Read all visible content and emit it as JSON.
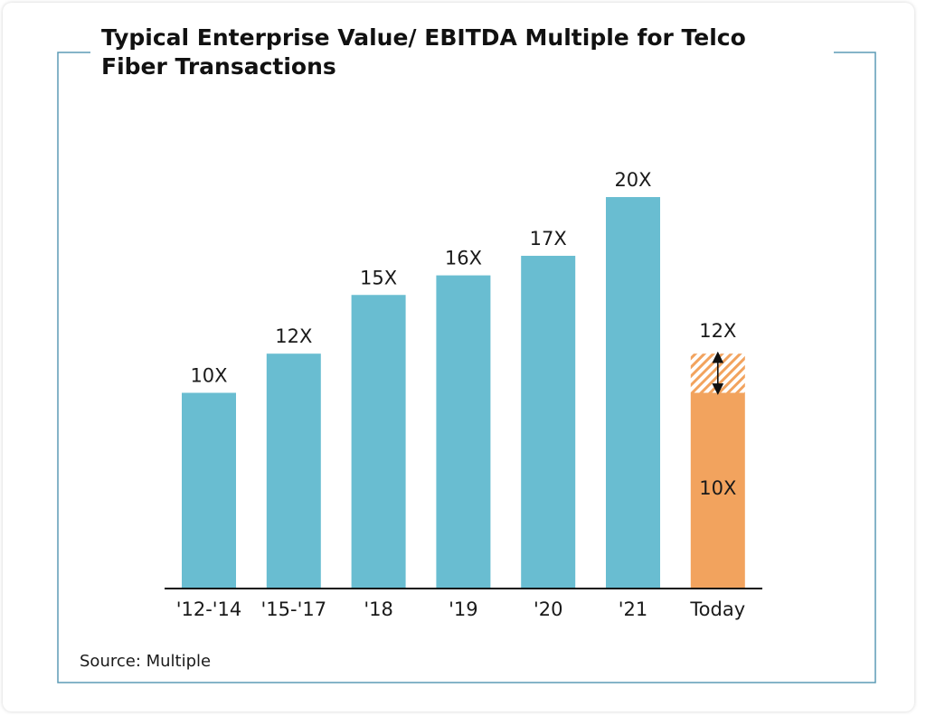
{
  "colors": {
    "frame": "#5d9bb5",
    "bar": "#69bdd1",
    "bar_today": "#f2a35e",
    "hatch": "#f2a35e",
    "axis": "#111111",
    "text": "#1a1a1a"
  },
  "chart_data": {
    "type": "bar",
    "title_lines": [
      "Typical Enterprise Value/ EBITDA Multiple for Telco",
      "Fiber Transactions"
    ],
    "categories": [
      "'12-'14",
      "'15-'17",
      "'18",
      "'19",
      "'20",
      "'21",
      "Today"
    ],
    "values": [
      10,
      12,
      15,
      16,
      17,
      20,
      10
    ],
    "data_labels": [
      "10X",
      "12X",
      "15X",
      "16X",
      "17X",
      "20X",
      "10X"
    ],
    "today_range": {
      "low": 10,
      "high": 12,
      "label": "12X"
    },
    "ylim": [
      0,
      20
    ],
    "grid": false,
    "source": "Source: Multiple"
  }
}
